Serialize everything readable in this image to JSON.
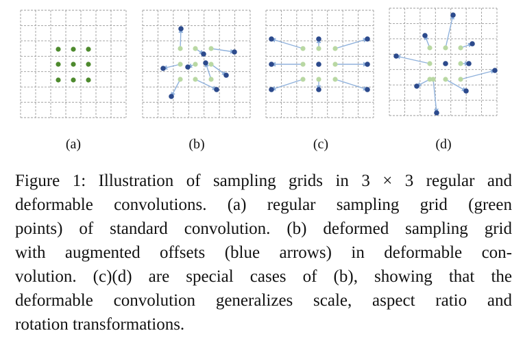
{
  "figure": {
    "panels": [
      {
        "label": "(a)"
      },
      {
        "label": "(b)"
      },
      {
        "label": "(c)"
      },
      {
        "label": "(d)"
      }
    ],
    "colors": {
      "grid": "#9a9a9a",
      "regular_point": "#4e8a2e",
      "regular_point_faded": "#b9d8a3",
      "deformed_point": "#2c4a8c",
      "offset_arrow": "#8fb1dc"
    }
  },
  "caption": {
    "lines": [
      "Figure 1: Illustration of sampling grids in 3 × 3 regular and",
      "deformable convolutions. (a) regular sampling grid (green",
      "points) of standard convolution. (b) deformed sampling grid",
      "with augmented offsets (blue arrows) in deformable con-",
      "volution. (c)(d) are special cases of (b), showing that the",
      "deformable convolution generalizes scale, aspect ratio and",
      "rotation transformations."
    ]
  }
}
